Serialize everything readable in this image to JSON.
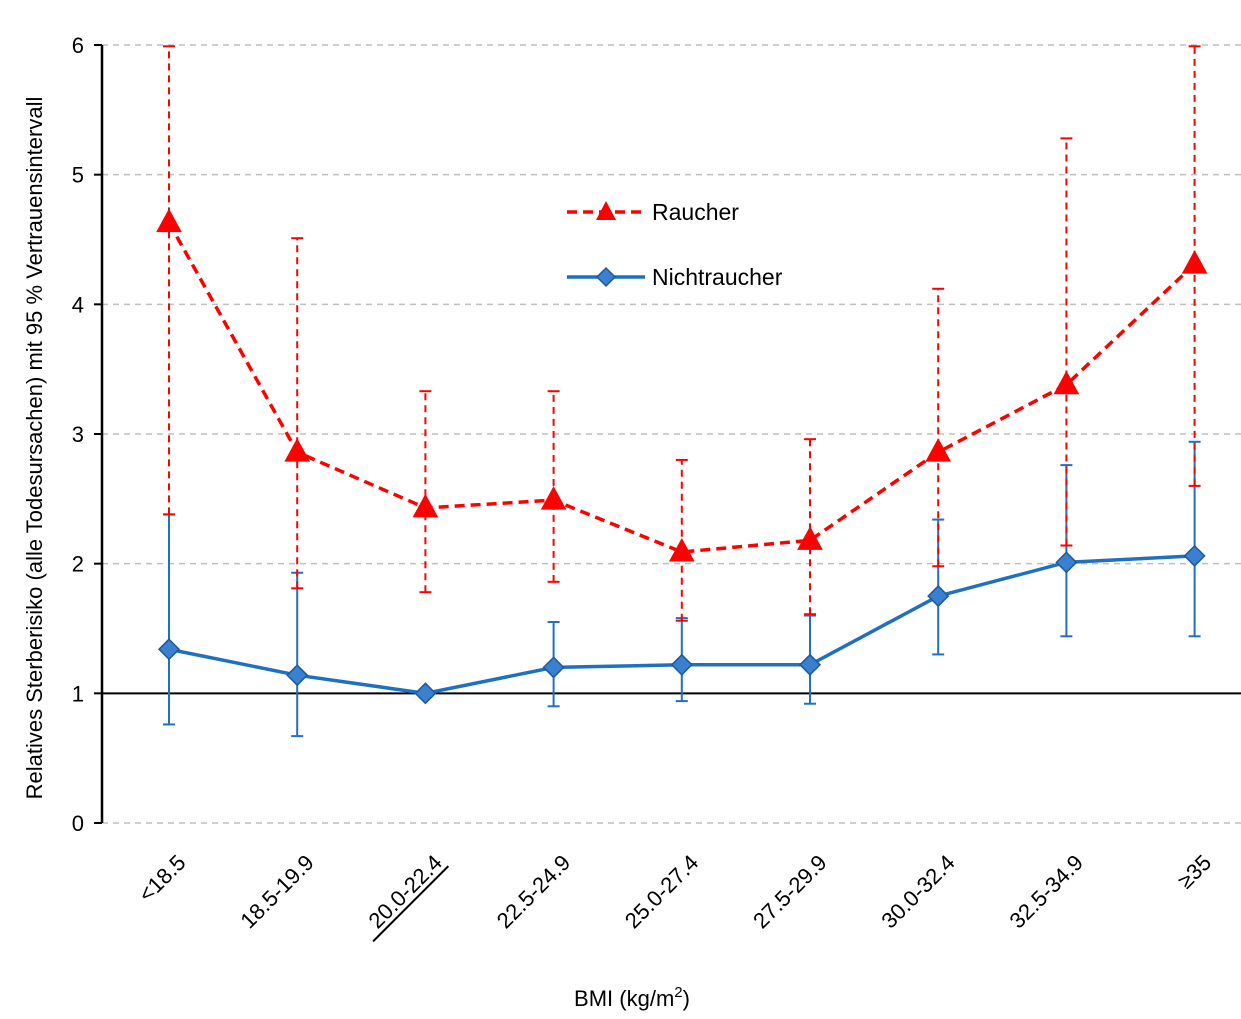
{
  "chart_data": {
    "type": "line",
    "xlabel": "BMI (kg/m²)",
    "xlabel_parts": {
      "base": "BMI (kg/m",
      "sup": "2",
      "close": ")"
    },
    "ylabel": "Relatives Sterberisiko (alle Todesursachen) mit 95 % Vertrauensintervall",
    "categories": [
      "<18.5",
      "18.5-19.9",
      "20.0-22.4",
      "22.5-24.9",
      "25.0-27.4",
      "27.5-29.9",
      "30.0-32.4",
      "32.5-34.9",
      "≥35"
    ],
    "reference_category": "20.0-22.4",
    "ylim": [
      0,
      6
    ],
    "yticks": [
      "0",
      "1",
      "2",
      "3",
      "4",
      "5",
      "6"
    ],
    "reference_line": 1,
    "grid": "horizontal dashed",
    "legend_position": "top-center",
    "series": [
      {
        "name": "Raucher",
        "color": "#ff0000",
        "line_style": "dashed",
        "marker": "triangle",
        "values": [
          4.63,
          2.86,
          2.43,
          2.49,
          2.09,
          2.18,
          2.86,
          3.38,
          4.31
        ],
        "lower": [
          2.38,
          1.81,
          1.78,
          1.86,
          1.56,
          1.61,
          1.98,
          2.14,
          2.6
        ],
        "upper": [
          5.99,
          4.51,
          3.33,
          3.33,
          2.8,
          2.96,
          4.12,
          5.28,
          5.99
        ]
      },
      {
        "name": "Nichtraucher",
        "color": "#1f70c1",
        "line_style": "solid",
        "marker": "diamond",
        "values": [
          1.34,
          1.14,
          1.0,
          1.2,
          1.22,
          1.22,
          1.75,
          2.01,
          2.06
        ],
        "lower": [
          0.76,
          0.67,
          1.0,
          0.9,
          0.94,
          0.92,
          1.3,
          1.44,
          1.44
        ],
        "upper": [
          2.38,
          1.93,
          1.0,
          1.55,
          1.58,
          1.6,
          2.34,
          2.76,
          2.94
        ]
      }
    ]
  }
}
